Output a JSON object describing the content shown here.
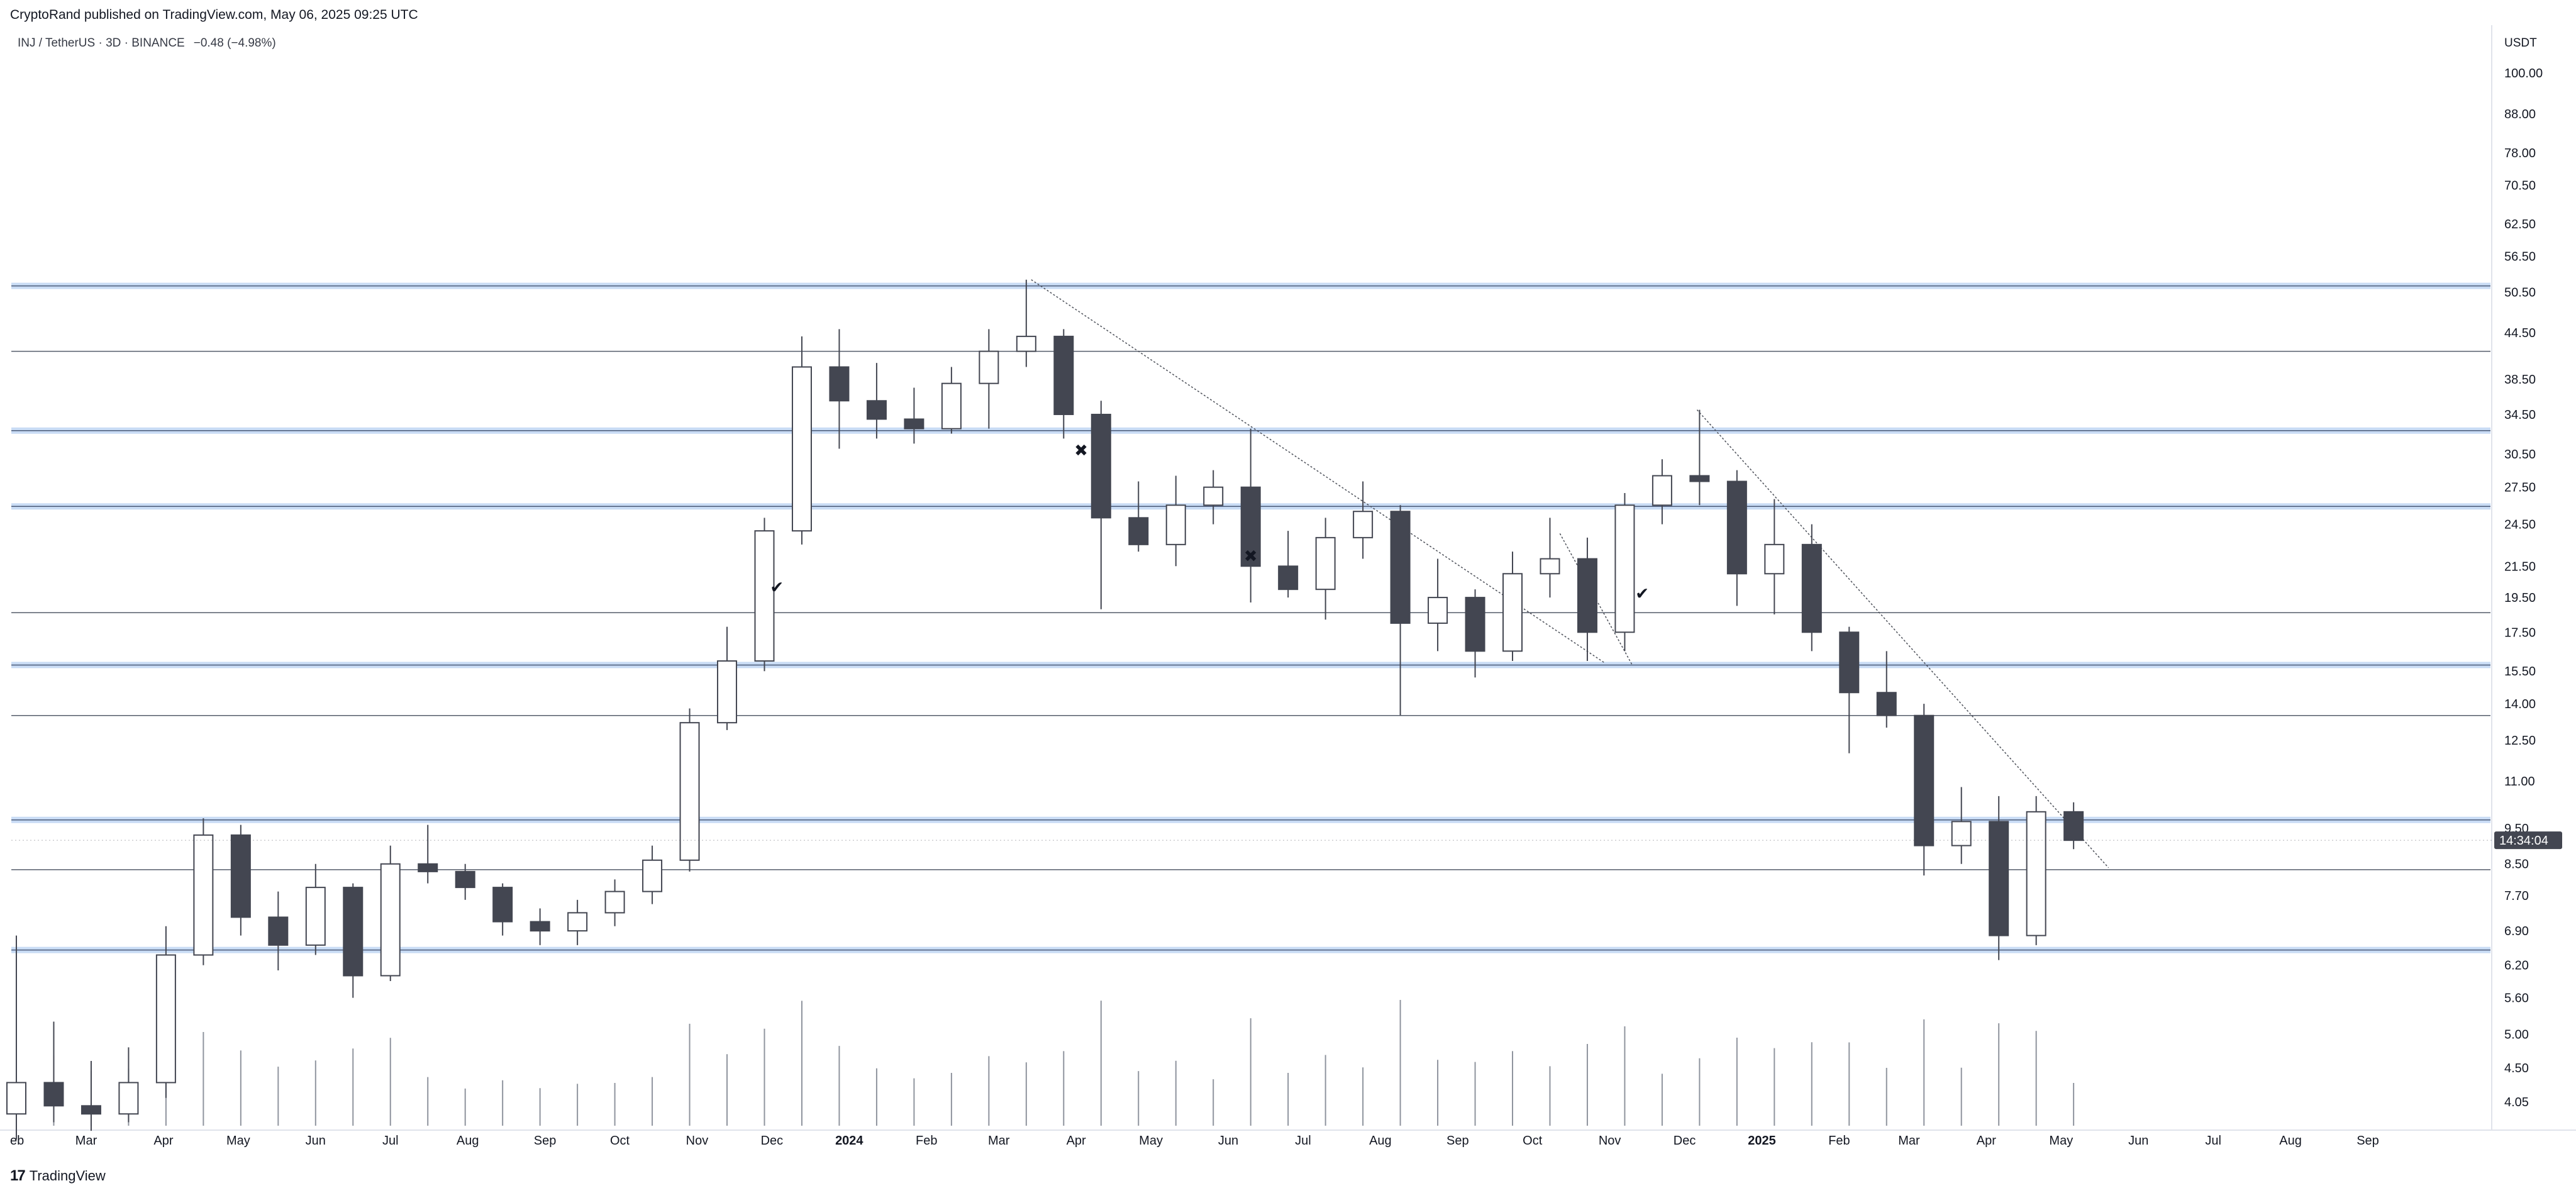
{
  "header": {
    "publish_line": "CryptoRand published on TradingView.com, May 06, 2025 09:25 UTC",
    "symbol_pair": "INJ / TetherUS · 3D · BINANCE",
    "change": "−0.48 (−4.98%)"
  },
  "price_axis": {
    "currency": "USDT",
    "ticks": [
      "100.00",
      "88.00",
      "78.00",
      "70.50",
      "62.50",
      "56.50",
      "50.50",
      "44.50",
      "38.50",
      "34.50",
      "30.50",
      "27.50",
      "24.50",
      "21.50",
      "19.50",
      "17.50",
      "15.50",
      "14.00",
      "12.50",
      "11.00",
      "9.50",
      "8.50",
      "7.70",
      "6.90",
      "6.20",
      "5.60",
      "5.00",
      "4.50",
      "4.05"
    ],
    "countdown": "14:34:04",
    "scale": "log"
  },
  "time_axis": {
    "ticks": [
      {
        "label": "eb",
        "year": false
      },
      {
        "label": "Mar",
        "year": false
      },
      {
        "label": "Apr",
        "year": false
      },
      {
        "label": "May",
        "year": false
      },
      {
        "label": "Jun",
        "year": false
      },
      {
        "label": "Jul",
        "year": false
      },
      {
        "label": "Aug",
        "year": false
      },
      {
        "label": "Sep",
        "year": false
      },
      {
        "label": "Oct",
        "year": false
      },
      {
        "label": "Nov",
        "year": false
      },
      {
        "label": "Dec",
        "year": false
      },
      {
        "label": "2024",
        "year": true
      },
      {
        "label": "Feb",
        "year": false
      },
      {
        "label": "Mar",
        "year": false
      },
      {
        "label": "Apr",
        "year": false
      },
      {
        "label": "May",
        "year": false
      },
      {
        "label": "Jun",
        "year": false
      },
      {
        "label": "Jul",
        "year": false
      },
      {
        "label": "Aug",
        "year": false
      },
      {
        "label": "Sep",
        "year": false
      },
      {
        "label": "Oct",
        "year": false
      },
      {
        "label": "Nov",
        "year": false
      },
      {
        "label": "Dec",
        "year": false
      },
      {
        "label": "2025",
        "year": true
      },
      {
        "label": "Feb",
        "year": false
      },
      {
        "label": "Mar",
        "year": false
      },
      {
        "label": "Apr",
        "year": false
      },
      {
        "label": "May",
        "year": false
      },
      {
        "label": "Jun",
        "year": false
      },
      {
        "label": "Jul",
        "year": false
      },
      {
        "label": "Aug",
        "year": false
      },
      {
        "label": "Sep",
        "year": false
      }
    ]
  },
  "chart_data": {
    "type": "candlestick",
    "symbol": "INJ / TetherUS",
    "interval": "3D",
    "exchange": "BINANCE",
    "y_scale": "log",
    "ylim": [
      3.9,
      110
    ],
    "x_range": [
      "2023-02-01",
      "2025-09-30"
    ],
    "current_price": 9.15,
    "horizontal_levels": [
      {
        "price": 51.5,
        "style": "zone"
      },
      {
        "price": 42.0,
        "style": "line"
      },
      {
        "price": 32.8,
        "style": "zone"
      },
      {
        "price": 25.9,
        "style": "zone"
      },
      {
        "price": 18.6,
        "style": "line"
      },
      {
        "price": 15.8,
        "style": "zone"
      },
      {
        "price": 13.5,
        "style": "line"
      },
      {
        "price": 9.75,
        "style": "zone"
      },
      {
        "price": 8.35,
        "style": "line"
      },
      {
        "price": 6.5,
        "style": "zone"
      }
    ],
    "trendlines": [
      {
        "from": {
          "date": "2024-03-14",
          "price": 52.5
        },
        "to": {
          "date": "2024-10-30",
          "price": 15.9
        }
      },
      {
        "from": {
          "date": "2024-10-12",
          "price": 23.8
        },
        "to": {
          "date": "2024-11-10",
          "price": 15.8
        }
      },
      {
        "from": {
          "date": "2024-12-06",
          "price": 35.0
        },
        "to": {
          "date": "2025-05-20",
          "price": 8.4
        }
      }
    ],
    "markers": [
      {
        "date": "2023-12-03",
        "price": 19.8,
        "symbol": "✔"
      },
      {
        "date": "2024-04-03",
        "price": 30.3,
        "symbol": "✖"
      },
      {
        "date": "2024-06-10",
        "price": 21.8,
        "symbol": "✖"
      },
      {
        "date": "2024-11-14",
        "price": 19.4,
        "symbol": "✔"
      }
    ],
    "candles": [
      {
        "date": "2023-02-01",
        "o": 3.9,
        "h": 6.8,
        "l": 3.6,
        "c": 4.3
      },
      {
        "date": "2023-02-16",
        "o": 4.3,
        "h": 5.2,
        "l": 3.8,
        "c": 4.0
      },
      {
        "date": "2023-03-03",
        "o": 4.0,
        "h": 4.6,
        "l": 3.7,
        "c": 3.9
      },
      {
        "date": "2023-03-18",
        "o": 3.9,
        "h": 4.8,
        "l": 3.8,
        "c": 4.3
      },
      {
        "date": "2023-04-02",
        "o": 4.3,
        "h": 7.0,
        "l": 4.1,
        "c": 6.4
      },
      {
        "date": "2023-04-17",
        "o": 6.4,
        "h": 9.8,
        "l": 6.2,
        "c": 9.3
      },
      {
        "date": "2023-05-02",
        "o": 9.3,
        "h": 9.6,
        "l": 6.8,
        "c": 7.2
      },
      {
        "date": "2023-05-17",
        "o": 7.2,
        "h": 7.8,
        "l": 6.1,
        "c": 6.6
      },
      {
        "date": "2023-06-01",
        "o": 6.6,
        "h": 8.5,
        "l": 6.4,
        "c": 7.9
      },
      {
        "date": "2023-06-16",
        "o": 7.9,
        "h": 8.0,
        "l": 5.6,
        "c": 6.0
      },
      {
        "date": "2023-07-01",
        "o": 6.0,
        "h": 9.0,
        "l": 5.9,
        "c": 8.5
      },
      {
        "date": "2023-07-16",
        "o": 8.5,
        "h": 9.6,
        "l": 8.0,
        "c": 8.3
      },
      {
        "date": "2023-07-31",
        "o": 8.3,
        "h": 8.5,
        "l": 7.6,
        "c": 7.9
      },
      {
        "date": "2023-08-15",
        "o": 7.9,
        "h": 8.0,
        "l": 6.8,
        "c": 7.1
      },
      {
        "date": "2023-08-30",
        "o": 7.1,
        "h": 7.4,
        "l": 6.6,
        "c": 6.9
      },
      {
        "date": "2023-09-14",
        "o": 6.9,
        "h": 7.6,
        "l": 6.6,
        "c": 7.3
      },
      {
        "date": "2023-09-29",
        "o": 7.3,
        "h": 8.1,
        "l": 7.0,
        "c": 7.8
      },
      {
        "date": "2023-10-14",
        "o": 7.8,
        "h": 9.0,
        "l": 7.5,
        "c": 8.6
      },
      {
        "date": "2023-10-29",
        "o": 8.6,
        "h": 13.8,
        "l": 8.3,
        "c": 13.2
      },
      {
        "date": "2023-11-13",
        "o": 13.2,
        "h": 17.8,
        "l": 12.9,
        "c": 16.0
      },
      {
        "date": "2023-11-28",
        "o": 16.0,
        "h": 25.0,
        "l": 15.5,
        "c": 24.0
      },
      {
        "date": "2023-12-13",
        "o": 24.0,
        "h": 44.0,
        "l": 23.0,
        "c": 40.0
      },
      {
        "date": "2023-12-28",
        "o": 40.0,
        "h": 45.0,
        "l": 31.0,
        "c": 36.0
      },
      {
        "date": "2024-01-12",
        "o": 36.0,
        "h": 40.5,
        "l": 32.0,
        "c": 34.0
      },
      {
        "date": "2024-01-27",
        "o": 34.0,
        "h": 37.5,
        "l": 31.5,
        "c": 33.0
      },
      {
        "date": "2024-02-11",
        "o": 33.0,
        "h": 40.0,
        "l": 32.5,
        "c": 38.0
      },
      {
        "date": "2024-02-26",
        "o": 38.0,
        "h": 45.0,
        "l": 33.0,
        "c": 42.0
      },
      {
        "date": "2024-03-12",
        "o": 42.0,
        "h": 52.5,
        "l": 40.0,
        "c": 44.0
      },
      {
        "date": "2024-03-27",
        "o": 44.0,
        "h": 45.0,
        "l": 32.0,
        "c": 34.5
      },
      {
        "date": "2024-04-11",
        "o": 34.5,
        "h": 36.0,
        "l": 18.8,
        "c": 25.0
      },
      {
        "date": "2024-04-26",
        "o": 25.0,
        "h": 28.0,
        "l": 22.5,
        "c": 23.0
      },
      {
        "date": "2024-05-11",
        "o": 23.0,
        "h": 28.5,
        "l": 21.5,
        "c": 26.0
      },
      {
        "date": "2024-05-26",
        "o": 26.0,
        "h": 29.0,
        "l": 24.5,
        "c": 27.5
      },
      {
        "date": "2024-06-10",
        "o": 27.5,
        "h": 33.0,
        "l": 19.2,
        "c": 21.5
      },
      {
        "date": "2024-06-25",
        "o": 21.5,
        "h": 24.0,
        "l": 19.5,
        "c": 20.0
      },
      {
        "date": "2024-07-10",
        "o": 20.0,
        "h": 25.0,
        "l": 18.2,
        "c": 23.5
      },
      {
        "date": "2024-07-25",
        "o": 23.5,
        "h": 28.0,
        "l": 22.0,
        "c": 25.5
      },
      {
        "date": "2024-08-09",
        "o": 25.5,
        "h": 26.0,
        "l": 13.5,
        "c": 18.0
      },
      {
        "date": "2024-08-24",
        "o": 18.0,
        "h": 22.0,
        "l": 16.5,
        "c": 19.5
      },
      {
        "date": "2024-09-08",
        "o": 19.5,
        "h": 20.0,
        "l": 15.2,
        "c": 16.5
      },
      {
        "date": "2024-09-23",
        "o": 16.5,
        "h": 22.5,
        "l": 16.0,
        "c": 21.0
      },
      {
        "date": "2024-10-08",
        "o": 21.0,
        "h": 25.0,
        "l": 19.5,
        "c": 22.0
      },
      {
        "date": "2024-10-23",
        "o": 22.0,
        "h": 23.5,
        "l": 16.0,
        "c": 17.5
      },
      {
        "date": "2024-11-07",
        "o": 17.5,
        "h": 27.0,
        "l": 16.5,
        "c": 26.0
      },
      {
        "date": "2024-11-22",
        "o": 26.0,
        "h": 30.0,
        "l": 24.5,
        "c": 28.5
      },
      {
        "date": "2024-12-07",
        "o": 28.5,
        "h": 35.0,
        "l": 26.0,
        "c": 28.0
      },
      {
        "date": "2024-12-22",
        "o": 28.0,
        "h": 29.0,
        "l": 19.0,
        "c": 21.0
      },
      {
        "date": "2025-01-06",
        "o": 21.0,
        "h": 26.5,
        "l": 18.5,
        "c": 23.0
      },
      {
        "date": "2025-01-21",
        "o": 23.0,
        "h": 24.5,
        "l": 16.5,
        "c": 17.5
      },
      {
        "date": "2025-02-05",
        "o": 17.5,
        "h": 17.8,
        "l": 12.0,
        "c": 14.5
      },
      {
        "date": "2025-02-20",
        "o": 14.5,
        "h": 16.5,
        "l": 13.0,
        "c": 13.5
      },
      {
        "date": "2025-03-07",
        "o": 13.5,
        "h": 14.0,
        "l": 8.2,
        "c": 9.0
      },
      {
        "date": "2025-03-22",
        "o": 9.0,
        "h": 10.8,
        "l": 8.5,
        "c": 9.7
      },
      {
        "date": "2025-04-06",
        "o": 9.7,
        "h": 10.5,
        "l": 6.3,
        "c": 6.8
      },
      {
        "date": "2025-04-21",
        "o": 6.8,
        "h": 10.5,
        "l": 6.6,
        "c": 10.0
      },
      {
        "date": "2025-05-06",
        "o": 10.0,
        "h": 10.3,
        "l": 8.9,
        "c": 9.15
      }
    ]
  }
}
